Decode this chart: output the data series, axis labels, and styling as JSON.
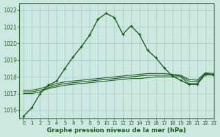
{
  "title": "Graphe pression niveau de la mer (hPa)",
  "bg_color": "#cce8e0",
  "grid_color": "#aacccc",
  "line_color": "#1a5c1a",
  "xlim": [
    -0.5,
    23
  ],
  "ylim": [
    1015.5,
    1022.4
  ],
  "yticks": [
    1016,
    1017,
    1018,
    1019,
    1020,
    1021,
    1022
  ],
  "xticks": [
    0,
    1,
    2,
    3,
    4,
    5,
    6,
    7,
    8,
    9,
    10,
    11,
    12,
    13,
    14,
    15,
    16,
    17,
    18,
    19,
    20,
    21,
    22,
    23
  ],
  "series": [
    [
      1015.65,
      1016.15,
      1017.0,
      1017.5,
      1017.75,
      1018.5,
      1019.2,
      1019.8,
      1020.5,
      1021.45,
      1021.8,
      1021.55,
      1020.55,
      1021.05,
      1020.55,
      1019.6,
      1019.15,
      1018.55,
      1018.05,
      1017.8,
      1017.55,
      1017.55,
      1018.15,
      1018.1
    ],
    [
      1017.0,
      1017.0,
      1017.1,
      1017.3,
      1017.4,
      1017.5,
      1017.55,
      1017.6,
      1017.65,
      1017.7,
      1017.75,
      1017.8,
      1017.85,
      1017.9,
      1017.9,
      1017.95,
      1018.0,
      1018.0,
      1018.0,
      1018.0,
      1017.6,
      1017.6,
      1018.15,
      1018.1
    ],
    [
      1017.1,
      1017.1,
      1017.2,
      1017.35,
      1017.5,
      1017.6,
      1017.65,
      1017.7,
      1017.75,
      1017.8,
      1017.85,
      1017.9,
      1017.95,
      1018.0,
      1018.05,
      1018.1,
      1018.1,
      1018.1,
      1018.1,
      1018.05,
      1017.75,
      1017.7,
      1018.2,
      1018.15
    ],
    [
      1017.2,
      1017.2,
      1017.3,
      1017.45,
      1017.6,
      1017.7,
      1017.75,
      1017.8,
      1017.85,
      1017.9,
      1017.95,
      1018.0,
      1018.05,
      1018.1,
      1018.15,
      1018.2,
      1018.2,
      1018.2,
      1018.15,
      1018.1,
      1017.85,
      1017.8,
      1018.25,
      1018.2
    ]
  ],
  "has_markers": [
    true,
    false,
    false,
    false
  ],
  "marker": "+",
  "lw_main": 1.0,
  "lw_flat": 0.8
}
